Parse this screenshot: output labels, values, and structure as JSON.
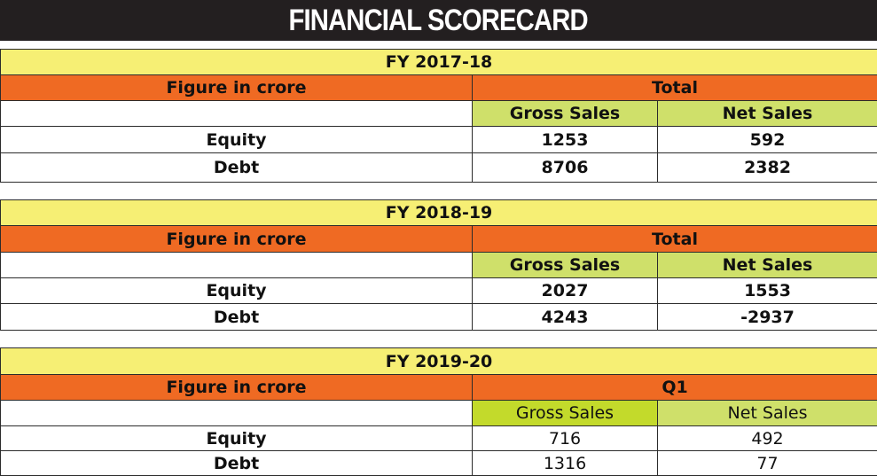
{
  "title": "FINANCIAL SCORECARD",
  "blocks": [
    {
      "period": "FY 2017-18",
      "row_header": "Figure in crore",
      "group_header": "Total",
      "columns": [
        "Gross Sales",
        "Net Sales"
      ],
      "rows": [
        {
          "label": "Equity",
          "gross": "1253",
          "net": "592"
        },
        {
          "label": "Debt",
          "gross": "8706",
          "net": "2382"
        }
      ]
    },
    {
      "period": "FY 2018-19",
      "row_header": "Figure in crore",
      "group_header": "Total",
      "columns": [
        "Gross Sales",
        "Net Sales"
      ],
      "rows": [
        {
          "label": "Equity",
          "gross": "2027",
          "net": "1553"
        },
        {
          "label": "Debt",
          "gross": "4243",
          "net": "-2937"
        }
      ]
    },
    {
      "period": "FY 2019-20",
      "row_header": "Figure in crore",
      "group_header": "Q1",
      "columns": [
        "Gross Sales",
        "Net Sales"
      ],
      "rows": [
        {
          "label": "Equity",
          "gross": "716",
          "net": "492"
        },
        {
          "label": "Debt",
          "gross": "1316",
          "net": "77"
        }
      ]
    }
  ],
  "colors": {
    "title_bg": "#231f20",
    "fy_band": "#f6ef74",
    "header_orange": "#ef6a23",
    "subheader_green": "#cfe06a"
  }
}
